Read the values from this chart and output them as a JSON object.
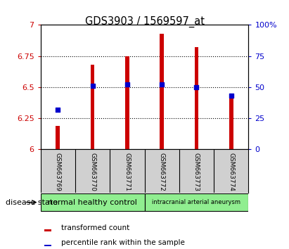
{
  "title": "GDS3903 / 1569597_at",
  "samples": [
    "GSM663769",
    "GSM663770",
    "GSM663771",
    "GSM663772",
    "GSM663773",
    "GSM663774"
  ],
  "bar_values": [
    6.19,
    6.68,
    6.75,
    6.93,
    6.82,
    6.42
  ],
  "percentile_values": [
    32,
    51,
    52,
    52,
    50,
    43
  ],
  "bar_color": "#cc0000",
  "dot_color": "#0000cc",
  "ymin": 6.0,
  "ymax": 7.0,
  "y2min": 0,
  "y2max": 100,
  "yticks": [
    6.0,
    6.25,
    6.5,
    6.75,
    7.0
  ],
  "y2ticks": [
    0,
    25,
    50,
    75,
    100
  ],
  "ytick_labels": [
    "6",
    "6.25",
    "6.5",
    "6.75",
    "7"
  ],
  "y2tick_labels": [
    "0",
    "25",
    "50",
    "75",
    "100%"
  ],
  "group1_label": "normal healthy control",
  "group2_label": "intracranial arterial aneurysm",
  "group1_indices": [
    0,
    1,
    2
  ],
  "group2_indices": [
    3,
    4,
    5
  ],
  "group1_color": "#90ee90",
  "group2_color": "#90ee90",
  "sample_box_color": "#d0d0d0",
  "disease_state_label": "disease state",
  "legend_bar_label": "transformed count",
  "legend_dot_label": "percentile rank within the sample",
  "bar_width": 0.12,
  "background_color": "#ffffff",
  "label_fontsize": 8,
  "title_fontsize": 10.5
}
